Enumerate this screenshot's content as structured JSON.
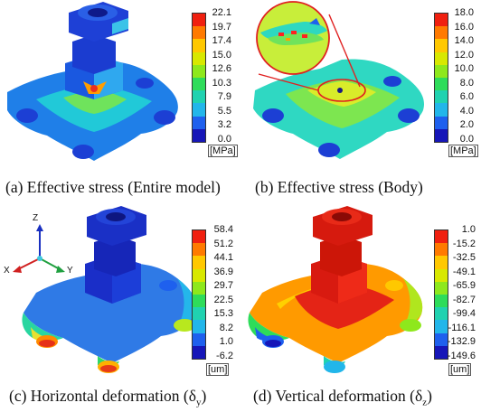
{
  "panels": [
    {
      "caption": "(a) Effective stress (Entire model)",
      "unit": "[MPa]",
      "ticks": [
        "22.1",
        "19.7",
        "17.4",
        "15.0",
        "12.6",
        "10.3",
        "7.9",
        "5.5",
        "3.2",
        "0.0"
      ],
      "colors": [
        "#f02010",
        "#ff7a00",
        "#ffc800",
        "#d8e800",
        "#8ee81c",
        "#2edc5a",
        "#20d2b0",
        "#22b6ea",
        "#1e60ee",
        "#1616b8"
      ]
    },
    {
      "caption": "(b) Effective stress (Body)",
      "unit": "[MPa]",
      "ticks": [
        "18.0",
        "16.0",
        "14.0",
        "12.0",
        "10.0",
        "8.0",
        "6.0",
        "4.0",
        "2.0",
        "0.0"
      ],
      "colors": [
        "#f02010",
        "#ff7a00",
        "#ffc800",
        "#d8e800",
        "#8ee81c",
        "#2edc5a",
        "#20d2b0",
        "#22b6ea",
        "#1e60ee",
        "#1616b8"
      ]
    },
    {
      "caption_main": "(c) Horizontal deformation (δ",
      "caption_sub": "y",
      "caption_end": ")",
      "unit": "[um]",
      "ticks": [
        "58.4",
        "51.2",
        "44.1",
        "36.9",
        "29.7",
        "22.5",
        "15.3",
        "8.2",
        "1.0",
        "-6.2"
      ],
      "colors": [
        "#f02010",
        "#ff7a00",
        "#ffc800",
        "#d8e800",
        "#8ee81c",
        "#2edc5a",
        "#20d2b0",
        "#22b6ea",
        "#1e60ee",
        "#1616b8"
      ],
      "triad": {
        "z": "Z",
        "x": "X",
        "y": "Y"
      }
    },
    {
      "caption_main": "(d) Vertical deformation (δ",
      "caption_sub": "z",
      "caption_end": ")",
      "unit": "[um]",
      "ticks": [
        "1.0",
        "-15.2",
        "-32.5",
        "-49.1",
        "-65.9",
        "-82.7",
        "-99.4",
        "-116.1",
        "-132.9",
        "-149.6"
      ],
      "colors": [
        "#f02010",
        "#ff7a00",
        "#ffc800",
        "#d8e800",
        "#8ee81c",
        "#2edc5a",
        "#20d2b0",
        "#22b6ea",
        "#1e60ee",
        "#1616b8"
      ]
    }
  ]
}
